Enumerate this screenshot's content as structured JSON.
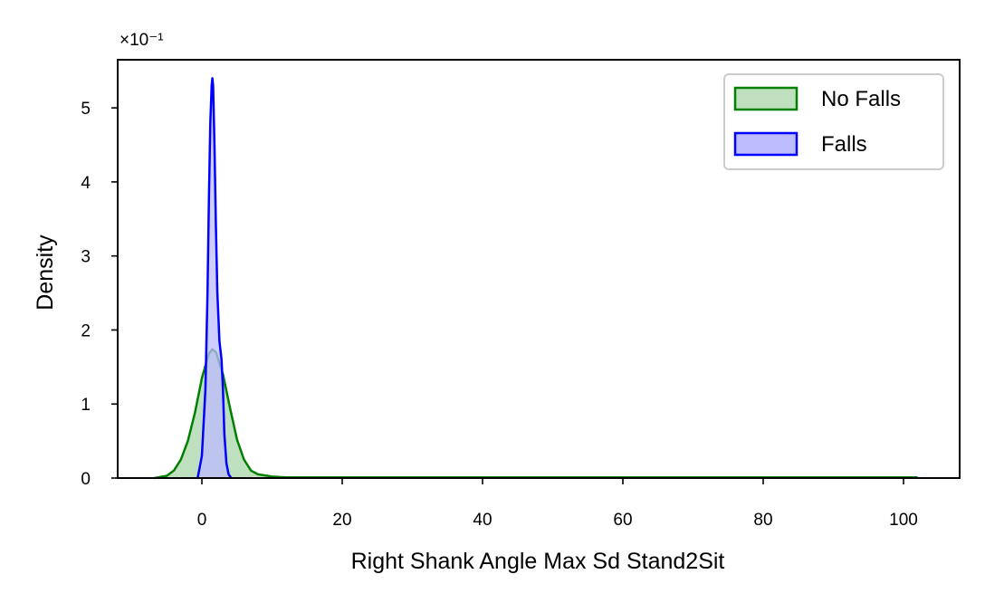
{
  "chart_data": {
    "type": "area",
    "title": "",
    "xlabel": "Right Shank Angle Max Sd Stand2Sit",
    "ylabel": "Density",
    "y_offset_label": "×10⁻¹",
    "xlim": [
      -12,
      108
    ],
    "ylim": [
      0,
      5.65
    ],
    "x_ticks": [
      0,
      20,
      40,
      60,
      80,
      100
    ],
    "x_tick_labels": [
      "0",
      "20",
      "40",
      "60",
      "80",
      "100"
    ],
    "y_ticks": [
      0,
      1,
      2,
      3,
      4,
      5
    ],
    "y_tick_labels": [
      "0",
      "1",
      "2",
      "3",
      "4",
      "5"
    ],
    "grid": false,
    "legend_position": "top-right",
    "series": [
      {
        "name": "No Falls",
        "line_color": "#008000",
        "fill_color": "#bfe0bf",
        "x": [
          -6.8,
          -5,
          -4,
          -3,
          -2,
          -1,
          0,
          1,
          1.5,
          2,
          3,
          4,
          5,
          6,
          7,
          8,
          10,
          12,
          20,
          40,
          60,
          80,
          102
        ],
        "y": [
          0,
          0.03,
          0.1,
          0.25,
          0.5,
          0.88,
          1.35,
          1.68,
          1.74,
          1.7,
          1.4,
          0.95,
          0.52,
          0.25,
          0.1,
          0.05,
          0.02,
          0.01,
          0.01,
          0.01,
          0.01,
          0.01,
          0.01
        ]
      },
      {
        "name": "Falls",
        "line_color": "#0000ff",
        "fill_color": "#bcbcff",
        "x": [
          -0.6,
          0,
          0.5,
          0.8,
          1,
          1.2,
          1.4,
          1.5,
          1.6,
          1.8,
          2,
          2.2,
          2.5,
          2.8,
          3,
          3.2,
          3.5,
          3.8,
          4.2
        ],
        "y": [
          0,
          0.3,
          1.2,
          2.5,
          3.8,
          4.8,
          5.3,
          5.4,
          5.3,
          4.5,
          3.4,
          2.5,
          1.85,
          1.6,
          1.2,
          0.6,
          0.2,
          0.05,
          0
        ]
      }
    ]
  }
}
